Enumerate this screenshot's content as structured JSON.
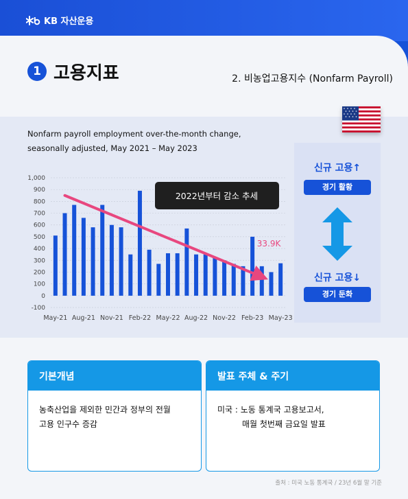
{
  "brand": {
    "name": "KB 자산운용"
  },
  "section": {
    "number": "1",
    "title": "고용지표",
    "subtitle": "2. 비농업고용지수 (Nonfarm Payroll)"
  },
  "chart_data": {
    "type": "bar",
    "description_line1": "Nonfarm payroll employment over-the-month change,",
    "description_line2": "seasonally adjusted, May 2021 – May 2023",
    "yticks": [
      "1,000",
      "900",
      "800",
      "700",
      "600",
      "500",
      "400",
      "300",
      "200",
      "100",
      "0",
      "-100"
    ],
    "ylim": [
      -100,
      1000
    ],
    "xtick_labels": [
      "May-21",
      "Aug-21",
      "Nov-21",
      "Feb-22",
      "May-22",
      "Aug-22",
      "Nov-22",
      "Feb-23",
      "May-23"
    ],
    "values": [
      510,
      700,
      770,
      660,
      580,
      770,
      600,
      580,
      350,
      890,
      390,
      270,
      360,
      360,
      570,
      350,
      350,
      320,
      300,
      270,
      250,
      500,
      250,
      200,
      275
    ],
    "annotation": "2022년부터 감소 추세",
    "value_label": "33.9K",
    "trend_color": "#e8477f",
    "bar_color": "#1652d8"
  },
  "sidebar": {
    "up_label": "신규 고용↑",
    "up_badge": "경기 활황",
    "down_label": "신규 고용↓",
    "down_badge": "경기 둔화"
  },
  "box_left": {
    "title": "기본개념",
    "line1": "농축산업을 제외한 민간과 정부의 전월",
    "line2": "고용 인구수 증감"
  },
  "box_right": {
    "title": "발표 주체 & 주기",
    "line1": "미국 : 노동 통계국 고용보고서,",
    "line2": "매월 첫번째 금요일 발표"
  },
  "footnote": "출처 : 미국 노동 통계국 / 23년 6월 말 기준"
}
